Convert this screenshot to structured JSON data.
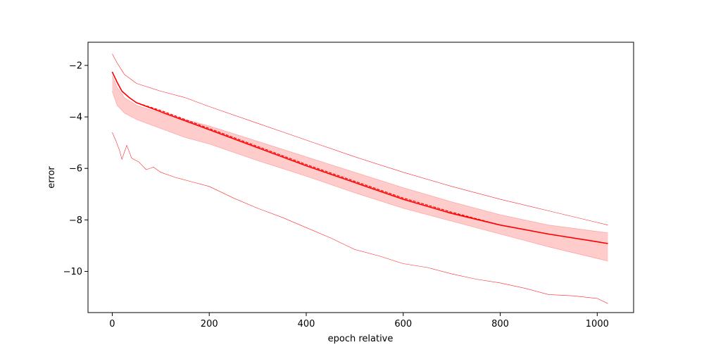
{
  "chart_data": {
    "type": "line",
    "title": "",
    "xlabel": "epoch relative",
    "ylabel": "error",
    "xlim": [
      -50,
      1075
    ],
    "ylim": [
      -11.6,
      -1.1
    ],
    "x_ticks": [
      0,
      200,
      400,
      600,
      800,
      1000
    ],
    "x_tick_labels": [
      "0",
      "200",
      "400",
      "600",
      "800",
      "1000"
    ],
    "y_ticks": [
      -2,
      -4,
      -6,
      -8,
      -10
    ],
    "y_tick_labels": [
      "−2",
      "−4",
      "−6",
      "−8",
      "−10"
    ],
    "grid": false,
    "legend": null,
    "colors": {
      "line": "#ff0000",
      "band": "#ff0000",
      "band_opacity": 0.2,
      "axis": "#000000"
    },
    "series": [
      {
        "role": "upper-band",
        "style": "fill-edge",
        "points": [
          [
            0,
            -2.4
          ],
          [
            10,
            -2.85
          ],
          [
            25,
            -3.25
          ],
          [
            50,
            -3.55
          ],
          [
            100,
            -3.85
          ],
          [
            150,
            -4.1
          ],
          [
            200,
            -4.35
          ],
          [
            300,
            -4.95
          ],
          [
            400,
            -5.55
          ],
          [
            500,
            -6.15
          ],
          [
            600,
            -6.75
          ],
          [
            700,
            -7.3
          ],
          [
            800,
            -7.8
          ],
          [
            900,
            -8.2
          ],
          [
            1000,
            -8.45
          ],
          [
            1022,
            -8.5
          ]
        ]
      },
      {
        "role": "lower-band",
        "style": "fill-edge",
        "points": [
          [
            0,
            -3.0
          ],
          [
            10,
            -3.55
          ],
          [
            25,
            -3.85
          ],
          [
            50,
            -4.1
          ],
          [
            100,
            -4.45
          ],
          [
            150,
            -4.8
          ],
          [
            200,
            -5.05
          ],
          [
            300,
            -5.7
          ],
          [
            400,
            -6.3
          ],
          [
            500,
            -6.95
          ],
          [
            600,
            -7.55
          ],
          [
            700,
            -8.05
          ],
          [
            800,
            -8.55
          ],
          [
            900,
            -9.05
          ],
          [
            1000,
            -9.5
          ],
          [
            1022,
            -9.6
          ]
        ]
      },
      {
        "role": "mean",
        "style": "solid",
        "points": [
          [
            0,
            -2.25
          ],
          [
            10,
            -2.65
          ],
          [
            20,
            -3.0
          ],
          [
            35,
            -3.25
          ],
          [
            50,
            -3.45
          ],
          [
            100,
            -3.8
          ],
          [
            150,
            -4.15
          ],
          [
            200,
            -4.5
          ],
          [
            300,
            -5.2
          ],
          [
            400,
            -5.9
          ],
          [
            500,
            -6.55
          ],
          [
            600,
            -7.2
          ],
          [
            700,
            -7.75
          ],
          [
            800,
            -8.2
          ],
          [
            900,
            -8.55
          ],
          [
            1000,
            -8.85
          ],
          [
            1022,
            -8.92
          ]
        ]
      },
      {
        "role": "median",
        "style": "dashed",
        "points": [
          [
            0,
            -2.25
          ],
          [
            10,
            -2.65
          ],
          [
            20,
            -3.0
          ],
          [
            35,
            -3.25
          ],
          [
            50,
            -3.45
          ],
          [
            100,
            -3.75
          ],
          [
            150,
            -4.1
          ],
          [
            200,
            -4.45
          ],
          [
            300,
            -5.15
          ],
          [
            400,
            -5.85
          ],
          [
            500,
            -6.5
          ],
          [
            600,
            -7.15
          ],
          [
            700,
            -7.7
          ],
          [
            800,
            -8.2
          ],
          [
            900,
            -8.55
          ],
          [
            1000,
            -8.85
          ],
          [
            1022,
            -8.92
          ]
        ]
      },
      {
        "role": "max",
        "style": "thin",
        "points": [
          [
            0,
            -1.55
          ],
          [
            10,
            -1.9
          ],
          [
            25,
            -2.35
          ],
          [
            50,
            -2.7
          ],
          [
            100,
            -3.0
          ],
          [
            150,
            -3.25
          ],
          [
            200,
            -3.6
          ],
          [
            300,
            -4.25
          ],
          [
            400,
            -4.9
          ],
          [
            500,
            -5.55
          ],
          [
            600,
            -6.15
          ],
          [
            700,
            -6.7
          ],
          [
            800,
            -7.2
          ],
          [
            900,
            -7.65
          ],
          [
            1000,
            -8.1
          ],
          [
            1022,
            -8.2
          ]
        ]
      },
      {
        "role": "min",
        "style": "thin",
        "points": [
          [
            0,
            -4.6
          ],
          [
            8,
            -4.95
          ],
          [
            15,
            -5.3
          ],
          [
            20,
            -5.65
          ],
          [
            30,
            -5.1
          ],
          [
            40,
            -5.6
          ],
          [
            55,
            -5.75
          ],
          [
            70,
            -6.05
          ],
          [
            85,
            -5.95
          ],
          [
            100,
            -6.15
          ],
          [
            130,
            -6.35
          ],
          [
            160,
            -6.5
          ],
          [
            200,
            -6.7
          ],
          [
            250,
            -7.15
          ],
          [
            300,
            -7.55
          ],
          [
            350,
            -7.9
          ],
          [
            400,
            -8.3
          ],
          [
            450,
            -8.7
          ],
          [
            500,
            -9.15
          ],
          [
            550,
            -9.4
          ],
          [
            600,
            -9.7
          ],
          [
            650,
            -9.85
          ],
          [
            700,
            -10.1
          ],
          [
            750,
            -10.3
          ],
          [
            800,
            -10.45
          ],
          [
            850,
            -10.65
          ],
          [
            900,
            -10.9
          ],
          [
            950,
            -10.95
          ],
          [
            1000,
            -11.05
          ],
          [
            1022,
            -11.25
          ]
        ]
      }
    ]
  }
}
